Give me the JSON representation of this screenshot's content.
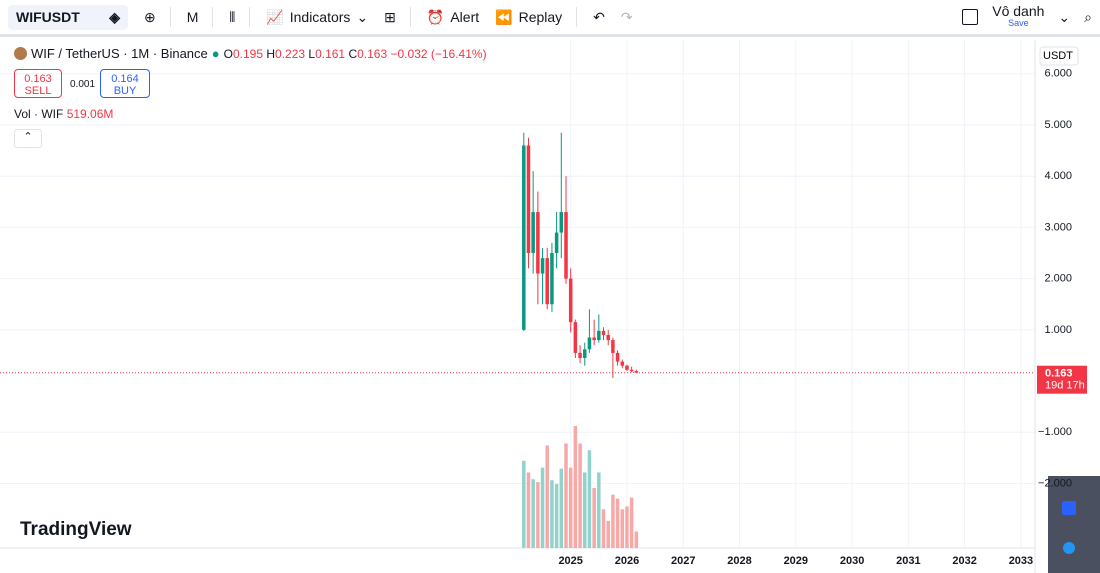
{
  "toolbar": {
    "symbol": "WIFUSDT",
    "interval": "M",
    "indicators": "Indicators",
    "alert": "Alert",
    "replay": "Replay",
    "user": "Vô danh",
    "save": "Save"
  },
  "legend": {
    "title": "WIF / TetherUS · 1M · Binance",
    "o_label": "O",
    "open": 0.195,
    "h_label": "H",
    "high": 0.223,
    "l_label": "L",
    "low": 0.161,
    "c_label": "C",
    "close": 0.163,
    "change": "−0.032 (−16.41%)",
    "volume": "Vol · WIF",
    "volume_value": "519.06M"
  },
  "trade": {
    "sell_price": 0.163,
    "sell": "SELL",
    "spread": 0.001,
    "buy_price": 0.164,
    "buy": "BUY"
  },
  "brand": "TradingView",
  "chart_data": {
    "type": "candlestick",
    "x": [
      2024.167,
      2024.25,
      2024.333,
      2024.417,
      2024.5,
      2024.583,
      2024.667,
      2024.75,
      2024.833,
      2024.917,
      2025,
      2025.083,
      2025.167,
      2025.25,
      2025.333,
      2025.417,
      2025.5,
      2025.583,
      2025.667,
      2025.75,
      2025.833,
      2025.917,
      2026,
      2026.083,
      2026.167
    ],
    "open": [
      1.0,
      4.6,
      2.5,
      3.3,
      2.1,
      2.4,
      1.5,
      2.5,
      2.9,
      3.3,
      2.0,
      1.15,
      0.55,
      0.45,
      0.62,
      0.85,
      0.8,
      0.98,
      0.9,
      0.8,
      0.55,
      0.38,
      0.3,
      0.22,
      0.195
    ],
    "high": [
      4.85,
      4.75,
      4.1,
      3.7,
      2.6,
      2.6,
      2.7,
      3.3,
      4.85,
      4.0,
      2.2,
      1.2,
      0.7,
      0.75,
      1.4,
      1.2,
      1.3,
      1.05,
      1.0,
      0.85,
      0.6,
      0.42,
      0.32,
      0.28,
      0.223
    ],
    "low": [
      0.98,
      2.2,
      2.1,
      1.5,
      1.5,
      1.4,
      1.35,
      2.2,
      2.4,
      1.9,
      0.95,
      0.45,
      0.35,
      0.3,
      0.55,
      0.7,
      0.75,
      0.8,
      0.7,
      0.06,
      0.3,
      0.25,
      0.2,
      0.17,
      0.161
    ],
    "close": [
      4.6,
      2.5,
      3.3,
      2.1,
      2.4,
      1.5,
      2.5,
      2.9,
      3.3,
      2.0,
      1.15,
      0.55,
      0.45,
      0.62,
      0.85,
      0.8,
      0.98,
      0.9,
      0.8,
      0.55,
      0.38,
      0.3,
      0.22,
      0.195,
      0.163
    ],
    "up_color": "#089981",
    "down_color": "#f23645",
    "volume": {
      "values": [
        2745,
        2380,
        2165,
        2075,
        2530,
        3230,
        2135,
        2013,
        2500,
        3290,
        2530,
        3840,
        3290,
        2380,
        3080,
        1890,
        2380,
        1220,
        855,
        1680,
        1555,
        1220,
        1310,
        1585,
        519.06
      ],
      "up_color": "#92d2cc",
      "down_color": "#f7a9a7"
    },
    "vlim": [
      0,
      16000
    ],
    "xlim": [
      2014.86,
      2033.25
    ],
    "xticks": [
      2025,
      2026,
      2027,
      2028,
      2029,
      2030,
      2031,
      2032,
      2033
    ],
    "ylim": [
      -3.26,
      6.66
    ],
    "yticks": [
      {
        "value": 6,
        "label": "6.000"
      },
      {
        "value": 5,
        "label": "5.000"
      },
      {
        "value": 4,
        "label": "4.000"
      },
      {
        "value": 3,
        "label": "3.000"
      },
      {
        "value": 2,
        "label": "2.000"
      },
      {
        "value": 1,
        "label": "1.000"
      },
      {
        "value": -1,
        "label": "−1.000"
      },
      {
        "value": -2,
        "label": "−2.000"
      }
    ],
    "grid": true,
    "price_unit": "USDT",
    "last_price": 0.163,
    "countdown": "19d 17h"
  }
}
